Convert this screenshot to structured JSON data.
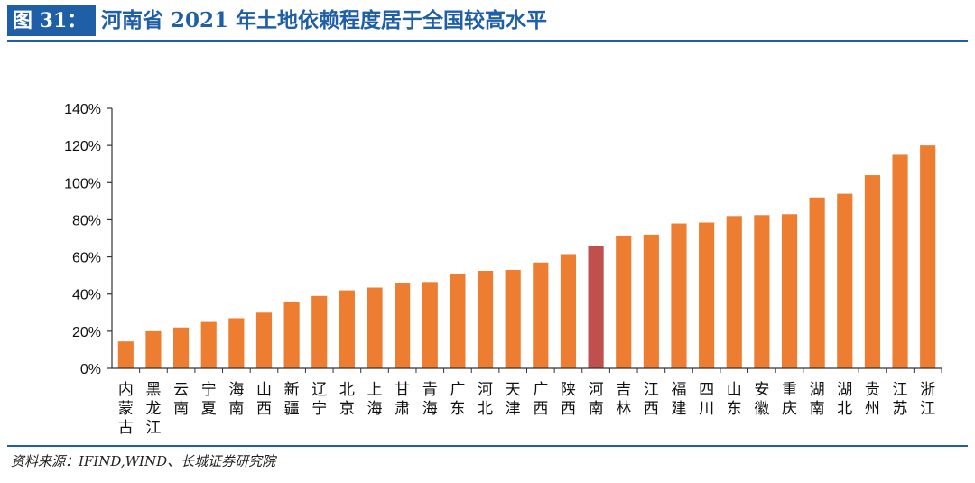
{
  "header": {
    "figure_label": "图 31：",
    "title": "河南省 2021 年土地依赖程度居于全国较高水平"
  },
  "footer": {
    "source": "资料来源：IFIND,WIND、长城证券研究院"
  },
  "colors": {
    "bar": "#ED7D31",
    "highlight": "#C0504D",
    "axis": "#333333",
    "accent": "#1F5FA8"
  },
  "chart_data": {
    "type": "bar",
    "ylim": [
      0,
      140
    ],
    "yticks": [
      0,
      20,
      40,
      60,
      80,
      100,
      120,
      140
    ],
    "ytick_format": "percent",
    "grid": false,
    "legend": "none",
    "highlight_category": "河南",
    "categories": [
      "内蒙古",
      "黑龙江",
      "云南",
      "宁夏",
      "海南",
      "山西",
      "新疆",
      "辽宁",
      "北京",
      "上海",
      "甘肃",
      "青海",
      "广东",
      "河北",
      "天津",
      "广西",
      "陕西",
      "河南",
      "吉林",
      "江西",
      "福建",
      "四川",
      "山东",
      "安徽",
      "重庆",
      "湖南",
      "湖北",
      "贵州",
      "江苏",
      "浙江"
    ],
    "values": [
      14.5,
      20,
      22,
      25,
      27,
      30,
      36,
      39,
      42,
      43.5,
      46,
      46.5,
      51,
      52.5,
      53,
      57,
      61.5,
      66,
      71.5,
      72,
      78,
      78.5,
      82,
      82.5,
      83,
      92,
      94,
      104,
      115,
      120
    ]
  }
}
